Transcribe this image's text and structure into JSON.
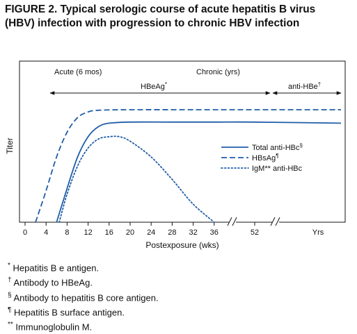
{
  "figure": {
    "title_line1": "FIGURE 2. Typical serologic course of acute hepatitis B virus",
    "title_line2": "(HBV) infection with progression to chronic HBV infection"
  },
  "chart_data": {
    "type": "line",
    "title": "",
    "xlabel": "Postexposure (wks)",
    "ylabel": "Titer",
    "x_ticks": [
      "0",
      "4",
      "8",
      "12",
      "16",
      "20",
      "24",
      "28",
      "32",
      "36",
      "52",
      "Yrs"
    ],
    "x_axis_breaks": [
      "between 36 and 52",
      "after 52"
    ],
    "phases": [
      {
        "label": "Acute (6 mos)"
      },
      {
        "label": "Chronic (yrs)"
      }
    ],
    "spans": [
      {
        "label": "HBeAg",
        "mark": "*",
        "from": "4",
        "to": "52"
      },
      {
        "label": "anti-HBe",
        "mark": "†",
        "from": "52",
        "to": "Yrs"
      }
    ],
    "legend_placement": "right-middle",
    "grid": false,
    "series": [
      {
        "name": "Total anti-HBc",
        "mark": "§",
        "style": "solid",
        "color": "#1f5da8",
        "points": [
          [
            6,
            0
          ],
          [
            8,
            0.3
          ],
          [
            10,
            0.58
          ],
          [
            12,
            0.76
          ],
          [
            14,
            0.85
          ],
          [
            16,
            0.88
          ],
          [
            20,
            0.89
          ],
          [
            28,
            0.89
          ],
          [
            36,
            0.89
          ],
          [
            52,
            0.89
          ],
          [
            80,
            0.88
          ]
        ]
      },
      {
        "name": "HBsAg",
        "mark": "¶",
        "style": "dashed",
        "color": "#1f5da8",
        "points": [
          [
            2,
            0
          ],
          [
            4,
            0.28
          ],
          [
            6,
            0.58
          ],
          [
            8,
            0.8
          ],
          [
            10,
            0.93
          ],
          [
            12,
            0.98
          ],
          [
            14,
            0.995
          ],
          [
            20,
            1.0
          ],
          [
            36,
            1.0
          ],
          [
            52,
            1.0
          ],
          [
            80,
            1.0
          ]
        ]
      },
      {
        "name": "IgM** anti-HBc",
        "mark": "",
        "style": "dotted",
        "color": "#1f5da8",
        "points": [
          [
            6.5,
            0
          ],
          [
            8,
            0.25
          ],
          [
            10,
            0.5
          ],
          [
            12,
            0.66
          ],
          [
            14,
            0.74
          ],
          [
            16,
            0.76
          ],
          [
            18,
            0.76
          ],
          [
            20,
            0.72
          ],
          [
            24,
            0.58
          ],
          [
            28,
            0.38
          ],
          [
            32,
            0.16
          ],
          [
            36,
            0
          ]
        ]
      }
    ]
  },
  "footnotes": [
    {
      "symbol": "*",
      "text": "Hepatitis B e antigen."
    },
    {
      "symbol": "†",
      "text": "Antibody to HBeAg."
    },
    {
      "symbol": "§",
      "text": "Antibody to hepatitis B core antigen."
    },
    {
      "symbol": "¶",
      "text": "Hepatitis B surface antigen."
    },
    {
      "symbol": "**",
      "text": "Immunoglobulin M."
    }
  ]
}
